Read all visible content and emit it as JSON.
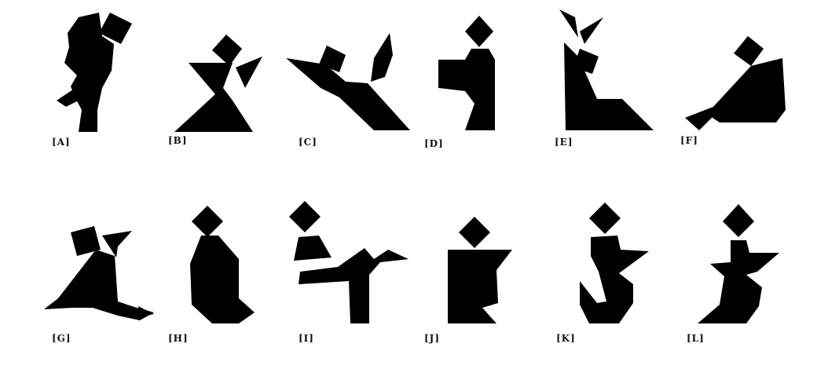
{
  "fill_color": "#000000",
  "figures": [
    {
      "label": "[A]"
    },
    {
      "label": "[B]"
    },
    {
      "label": "[C]"
    },
    {
      "label": "[D]"
    },
    {
      "label": "[E]"
    },
    {
      "label": "[F]"
    },
    {
      "label": "[G]"
    },
    {
      "label": "[H]"
    },
    {
      "label": "[I]"
    },
    {
      "label": "[J]"
    },
    {
      "label": "[K]"
    },
    {
      "label": "[L]"
    }
  ]
}
